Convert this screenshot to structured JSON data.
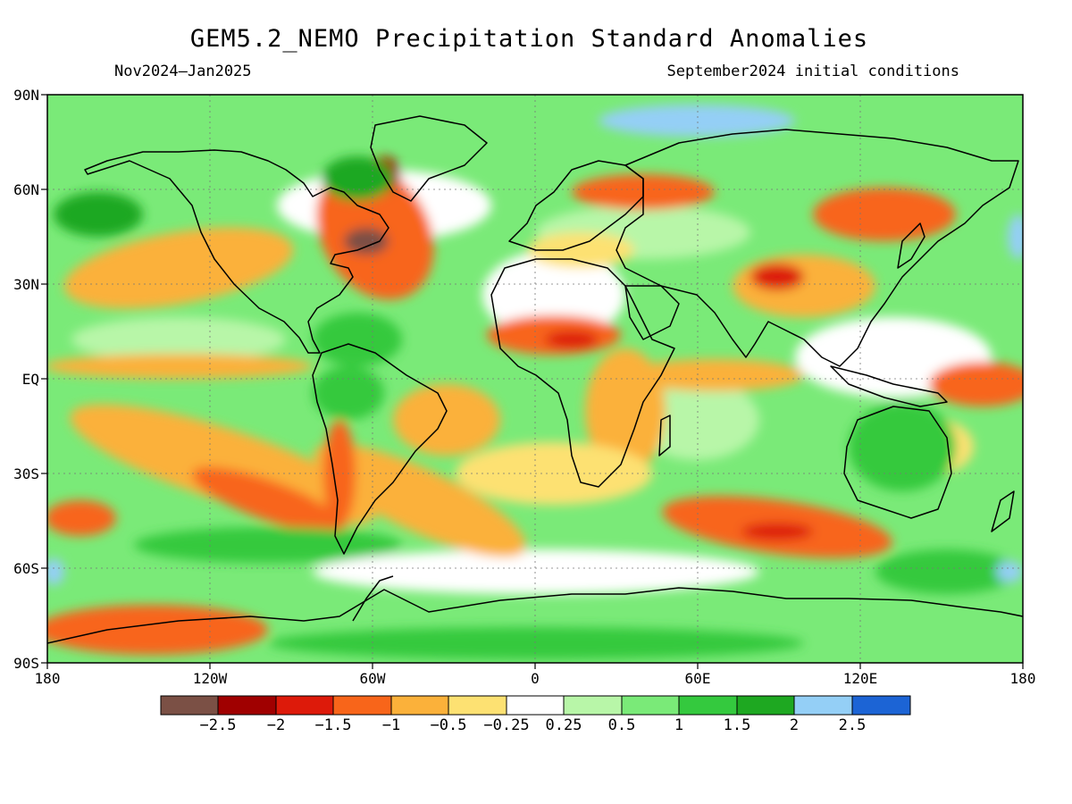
{
  "title": "GEM5.2_NEMO Precipitation Standard Anomalies",
  "period": "Nov2024–Jan2025",
  "initial_conditions": "September2024 initial conditions",
  "lat_labels": [
    "90N",
    "60N",
    "30N",
    "EQ",
    "30S",
    "60S",
    "90S"
  ],
  "lon_labels": [
    "180",
    "120W",
    "60W",
    "0",
    "60E",
    "120E",
    "180"
  ],
  "colorbar": {
    "colors": [
      "#7b5045",
      "#a00000",
      "#dd1a0a",
      "#f8651a",
      "#fbb13a",
      "#fde172",
      "#ffffff",
      "#b8f6a8",
      "#7aea78",
      "#34c93e",
      "#1ea821",
      "#94cff6",
      "#1c64d5"
    ],
    "labels": [
      "−2.5",
      "−2",
      "−1.5",
      "−1",
      "−0.5",
      "−0.25",
      "0.25",
      "0.5",
      "1",
      "1.5",
      "2",
      "2.5"
    ]
  },
  "map": {
    "lon_range": [
      -180,
      180
    ],
    "lat_range": [
      -90,
      90
    ],
    "background_color": "#7aea78"
  }
}
